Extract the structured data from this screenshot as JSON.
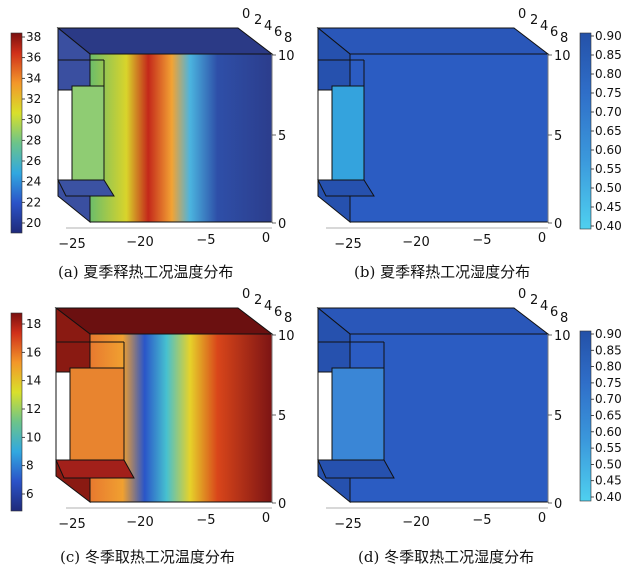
{
  "panels": [
    {
      "id": "a",
      "caption": "(a) 夏季释热工况温度分布",
      "field": "temperature",
      "x_ticks": [
        "−25",
        "−20",
        "−5",
        "0"
      ],
      "z_ticks": [
        "0",
        "5",
        "10"
      ],
      "y_ticks": [
        "0",
        "2",
        "4",
        "6",
        "8"
      ],
      "colorbar": {
        "ticks": [
          "38",
          "36",
          "34",
          "32",
          "30",
          "28",
          "26",
          "24",
          "22",
          "20"
        ],
        "range": [
          19,
          38
        ],
        "palette": "jet"
      },
      "face_colors": {
        "top": "#2b3a86",
        "front_far": "#2c3d8c",
        "front_hot": "#b51a10",
        "inner": "#6cbd6a",
        "notch": "#8fcc73"
      }
    },
    {
      "id": "b",
      "caption": "(b) 夏季释热工况湿度分布",
      "field": "humidity",
      "x_ticks": [
        "−25",
        "−20",
        "−5",
        "0"
      ],
      "z_ticks": [
        "0",
        "5",
        "10"
      ],
      "y_ticks": [
        "0",
        "2",
        "4",
        "6",
        "8"
      ],
      "colorbar": {
        "ticks": [
          "0.90",
          "0.85",
          "0.80",
          "0.75",
          "0.70",
          "0.65",
          "0.60",
          "0.55",
          "0.50",
          "0.45",
          "0.40"
        ],
        "range": [
          0.4,
          0.9
        ],
        "palette": "blues"
      },
      "face_colors": {
        "top": "#2a57b9",
        "front": "#2b5cc2",
        "side": "#2651ae",
        "inner": "#34a3dd"
      }
    },
    {
      "id": "c",
      "caption": "(c) 冬季取热工况温度分布",
      "field": "temperature",
      "x_ticks": [
        "−25",
        "−20",
        "−5",
        "0"
      ],
      "z_ticks": [
        "0",
        "5",
        "10"
      ],
      "y_ticks": [
        "0",
        "2",
        "4",
        "6",
        "8"
      ],
      "colorbar": {
        "ticks": [
          "18",
          "16",
          "14",
          "12",
          "10",
          "8",
          "6"
        ],
        "range": [
          5,
          19
        ],
        "palette": "jet"
      },
      "face_colors": {
        "top": "#6b1010",
        "front_far": "#7c1414",
        "front_cold": "#2a55c8",
        "inner": "#e8792f",
        "notch": "#e8842f"
      }
    },
    {
      "id": "d",
      "caption": "(d) 冬季取热工况湿度分布",
      "field": "humidity",
      "x_ticks": [
        "−25",
        "−20",
        "−5",
        "0"
      ],
      "z_ticks": [
        "0",
        "5",
        "10"
      ],
      "y_ticks": [
        "0",
        "2",
        "4",
        "6",
        "8"
      ],
      "colorbar": {
        "ticks": [
          "0.90",
          "0.85",
          "0.80",
          "0.75",
          "0.70",
          "0.65",
          "0.60",
          "0.55",
          "0.50",
          "0.45",
          "0.40"
        ],
        "range": [
          0.4,
          0.9
        ],
        "palette": "blues"
      },
      "face_colors": {
        "top": "#2a57b9",
        "front": "#2b5cc2",
        "side": "#2651ae",
        "inner": "#3a86d6"
      }
    }
  ]
}
